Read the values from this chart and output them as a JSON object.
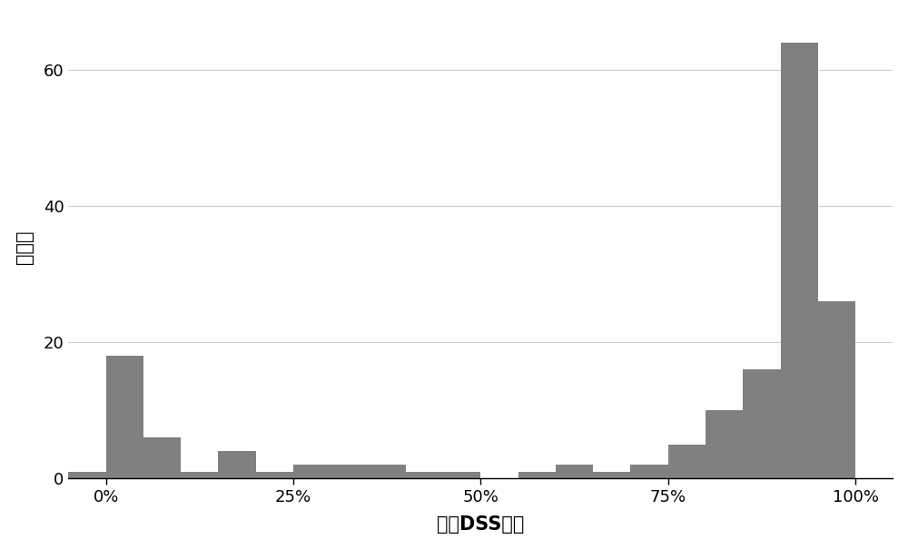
{
  "title": "",
  "xlabel": "可靠DSS比例",
  "ylabel": "物种数",
  "bar_color": "#808080",
  "background_color": "#ffffff",
  "grid_color": "#d0d0d0",
  "xlim": [
    -0.05,
    1.05
  ],
  "ylim": [
    0,
    68
  ],
  "yticks": [
    0,
    20,
    40,
    60
  ],
  "xticks": [
    0.0,
    0.25,
    0.5,
    0.75,
    1.0
  ],
  "xticklabels": [
    "0%",
    "25%",
    "50%",
    "75%",
    "100%"
  ],
  "bin_edges": [
    -0.05,
    0.0,
    0.05,
    0.1,
    0.15,
    0.2,
    0.25,
    0.3,
    0.35,
    0.4,
    0.45,
    0.5,
    0.55,
    0.6,
    0.65,
    0.7,
    0.75,
    0.8,
    0.85,
    0.9,
    0.95,
    1.0
  ],
  "bar_heights": [
    1,
    18,
    6,
    1,
    4,
    1,
    2,
    2,
    2,
    1,
    1,
    0,
    1,
    2,
    1,
    2,
    5,
    10,
    16,
    64,
    26
  ],
  "bar_width": 0.05,
  "figsize": [
    10.0,
    6.05
  ],
  "dpi": 100,
  "tick_labelsize": 13,
  "label_fontsize": 15
}
